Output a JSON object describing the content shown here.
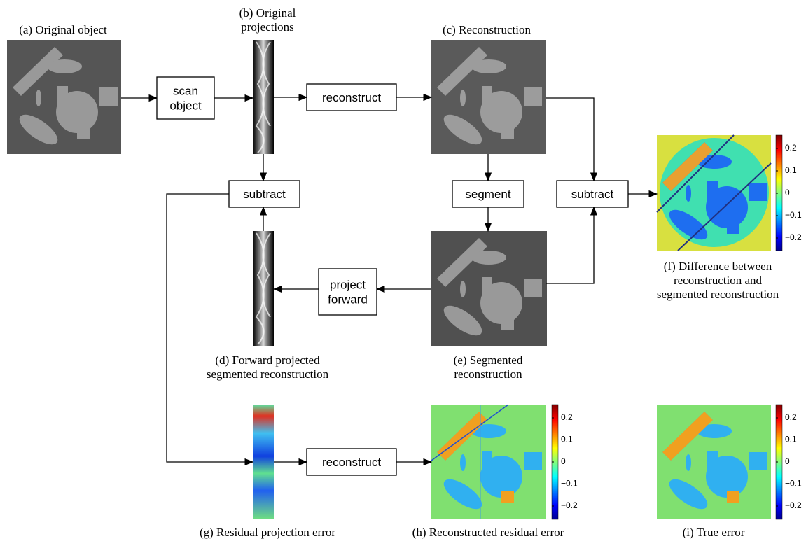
{
  "captions": {
    "a": [
      "(a) Original object"
    ],
    "b": [
      "(b) Original",
      "projections"
    ],
    "c": [
      "(c) Reconstruction"
    ],
    "d": [
      "(d) Forward projected",
      "segmented reconstruction"
    ],
    "e": [
      "(e) Segmented",
      "reconstruction"
    ],
    "f": [
      "(f) Difference between",
      "reconstruction and",
      "segmented reconstruction"
    ],
    "g": [
      "(g) Residual projection error"
    ],
    "h": [
      "(h) Reconstructed residual error"
    ],
    "i": [
      "(i) True error"
    ]
  },
  "boxes": {
    "scan_object": [
      "scan",
      "object"
    ],
    "reconstruct_top": [
      "reconstruct"
    ],
    "subtract_left": [
      "subtract"
    ],
    "segment": [
      "segment"
    ],
    "subtract_right": [
      "subtract"
    ],
    "project_forward": [
      "project",
      "forward"
    ],
    "reconstruct_bottom": [
      "reconstruct"
    ]
  },
  "colorbars": {
    "f": [
      "0.2",
      "0.1",
      "0",
      "−0.1",
      "−0.2"
    ],
    "h": [
      "0.2",
      "0.1",
      "0",
      "−0.1",
      "−0.2"
    ],
    "i": [
      "0.2",
      "0.1",
      "0",
      "−0.1",
      "−0.2"
    ]
  }
}
